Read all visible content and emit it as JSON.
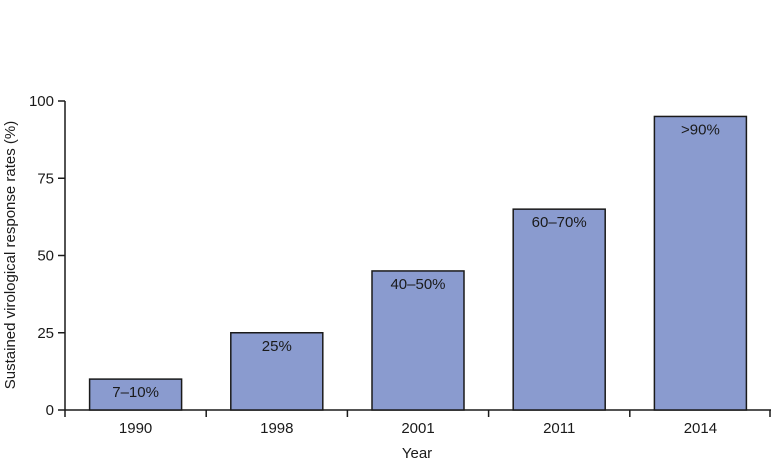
{
  "chart_data": {
    "type": "bar",
    "categories": [
      "1990",
      "1998",
      "2001",
      "2011",
      "2014"
    ],
    "values": [
      10,
      25,
      45,
      65,
      95
    ],
    "data_labels": [
      "7–10%",
      "25%",
      "40–50%",
      "60–70%",
      ">90%"
    ],
    "xlabel": "Year",
    "ylabel": "Sustained virological response rates (%)",
    "ylim": [
      0,
      100
    ],
    "yticks": [
      0,
      25,
      50,
      75,
      100
    ],
    "grid": false,
    "legend": "none",
    "bar_color": "#8A9BCF",
    "bar_edge_color": "#1a1a1a"
  }
}
